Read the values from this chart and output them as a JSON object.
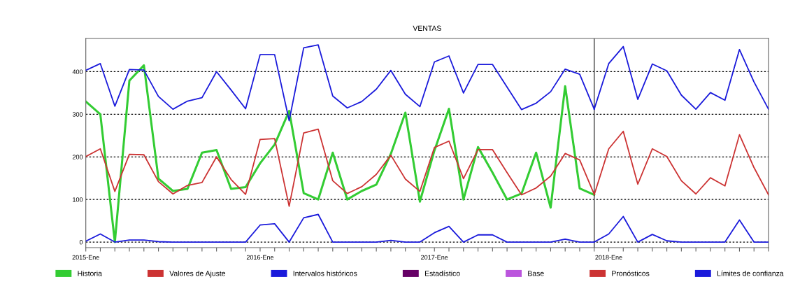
{
  "chart_data": {
    "type": "line",
    "title": "VENTAS",
    "xlim": [
      "2015-01",
      "2018-12"
    ],
    "ylim": [
      -13,
      478
    ],
    "yticks": [
      0,
      100,
      200,
      300,
      400
    ],
    "xticks": [
      {
        "value": "2015-01",
        "label": "2015-Ene"
      },
      {
        "value": "2015-02",
        "label": null
      },
      {
        "value": "2015-03",
        "label": null
      },
      {
        "value": "2015-04",
        "label": null
      },
      {
        "value": "2015-05",
        "label": null
      },
      {
        "value": "2015-06",
        "label": null
      },
      {
        "value": "2015-07",
        "label": null
      },
      {
        "value": "2015-08",
        "label": null
      },
      {
        "value": "2015-09",
        "label": null
      },
      {
        "value": "2015-10",
        "label": null
      },
      {
        "value": "2015-11",
        "label": null
      },
      {
        "value": "2015-12",
        "label": null
      },
      {
        "value": "2016-01",
        "label": "2016-Ene"
      },
      {
        "value": "2016-02",
        "label": null
      },
      {
        "value": "2016-03",
        "label": null
      },
      {
        "value": "2016-04",
        "label": null
      },
      {
        "value": "2016-05",
        "label": null
      },
      {
        "value": "2016-06",
        "label": null
      },
      {
        "value": "2016-07",
        "label": null
      },
      {
        "value": "2016-08",
        "label": null
      },
      {
        "value": "2016-09",
        "label": null
      },
      {
        "value": "2016-10",
        "label": null
      },
      {
        "value": "2016-11",
        "label": null
      },
      {
        "value": "2016-12",
        "label": null
      },
      {
        "value": "2017-01",
        "label": "2017-Ene"
      },
      {
        "value": "2017-02",
        "label": null
      },
      {
        "value": "2017-03",
        "label": null
      },
      {
        "value": "2017-04",
        "label": null
      },
      {
        "value": "2017-05",
        "label": null
      },
      {
        "value": "2017-06",
        "label": null
      },
      {
        "value": "2017-07",
        "label": null
      },
      {
        "value": "2017-08",
        "label": null
      },
      {
        "value": "2017-09",
        "label": null
      },
      {
        "value": "2017-10",
        "label": null
      },
      {
        "value": "2017-11",
        "label": null
      },
      {
        "value": "2017-12",
        "label": null
      },
      {
        "value": "2018-01",
        "label": "2018-Ene"
      },
      {
        "value": "2018-02",
        "label": null
      },
      {
        "value": "2018-03",
        "label": null
      },
      {
        "value": "2018-04",
        "label": null
      },
      {
        "value": "2018-05",
        "label": null
      },
      {
        "value": "2018-06",
        "label": null
      },
      {
        "value": "2018-07",
        "label": null
      },
      {
        "value": "2018-08",
        "label": null
      },
      {
        "value": "2018-09",
        "label": null
      },
      {
        "value": "2018-10",
        "label": null
      },
      {
        "value": "2018-11",
        "label": null
      },
      {
        "value": "2018-12",
        "label": null
      }
    ],
    "x": [
      "2015-01",
      "2015-02",
      "2015-03",
      "2015-04",
      "2015-05",
      "2015-06",
      "2015-07",
      "2015-08",
      "2015-09",
      "2015-10",
      "2015-11",
      "2015-12",
      "2016-01",
      "2016-02",
      "2016-03",
      "2016-04",
      "2016-05",
      "2016-06",
      "2016-07",
      "2016-08",
      "2016-09",
      "2016-10",
      "2016-11",
      "2016-12",
      "2017-01",
      "2017-02",
      "2017-03",
      "2017-04",
      "2017-05",
      "2017-06",
      "2017-07",
      "2017-08",
      "2017-09",
      "2017-10",
      "2017-11",
      "2017-12"
    ],
    "grid": "y",
    "legend": "bottom",
    "marker": "none",
    "line_style": "solid",
    "ref_lines": [
      {
        "axis": "x",
        "value": "2017-12",
        "label": null,
        "color": "#404040"
      }
    ],
    "series": [
      {
        "name": "Historia",
        "color": "#33cc33",
        "values": [
          330,
          300,
          0,
          379,
          415,
          149,
          120,
          125,
          210,
          216,
          125,
          129,
          185,
          229,
          308,
          115,
          100,
          210,
          100,
          120,
          135,
          207,
          304,
          95,
          215,
          313,
          100,
          223,
          163,
          100,
          114,
          210,
          81,
          366,
          126,
          111
        ]
      },
      {
        "name": "Valores de Ajuste",
        "color": "#cc3333",
        "values": [
          201,
          219,
          119,
          206,
          205,
          142,
          113,
          133,
          140,
          200,
          147,
          112,
          241,
          243,
          84,
          256,
          265,
          144,
          114,
          130,
          159,
          204,
          148,
          119,
          222,
          237,
          149,
          217,
          217,
          163,
          111,
          127,
          155,
          208,
          193,
          112
        ]
      },
      {
        "name": "Intervalos históricos",
        "color": "#1a1adb",
        "values": [
          403,
          419,
          319,
          405,
          404,
          342,
          312,
          331,
          339,
          400,
          357,
          313,
          440,
          440,
          285,
          456,
          463,
          343,
          315,
          330,
          359,
          403,
          347,
          318,
          423,
          437,
          350,
          417,
          417,
          364,
          311,
          326,
          353,
          406,
          394,
          312
        ]
      },
      {
        "color": "#1a1adb",
        "values": [
          2,
          19,
          0,
          5,
          5,
          1,
          0,
          0,
          0,
          0,
          0,
          0,
          40,
          43,
          0,
          57,
          65,
          0,
          0,
          0,
          0,
          4,
          0,
          0,
          22,
          37,
          0,
          17,
          17,
          0,
          0,
          0,
          0,
          7,
          0,
          0
        ]
      },
      {
        "name": "Estadístico",
        "color": "#660066",
        "values": [
          null,
          null,
          null,
          null,
          null,
          null,
          null,
          null,
          null,
          null,
          null,
          null,
          null,
          null,
          null,
          null,
          null,
          null,
          null,
          null,
          null,
          null,
          null,
          null,
          null,
          null,
          null,
          null,
          null,
          null,
          null,
          null,
          null,
          null,
          null,
          null
        ]
      },
      {
        "name": "Base",
        "color": "#bb55dd",
        "values": [
          null,
          null,
          null,
          null,
          null,
          null,
          null,
          null,
          null,
          null,
          null,
          null,
          null,
          null,
          null,
          null,
          null,
          null,
          null,
          null,
          null,
          null,
          null,
          null,
          null,
          null,
          null,
          null,
          null,
          null,
          null,
          null,
          null,
          null,
          null,
          null
        ]
      },
      {
        "name": "Pronósticos",
        "color": "#cc3333",
        "x": [
          "2017-12",
          "2018-01",
          "2018-02",
          "2018-03",
          "2018-04",
          "2018-05",
          "2018-06",
          "2018-07",
          "2018-08",
          "2018-09",
          "2018-10",
          "2018-11",
          "2018-12"
        ],
        "values": [
          111,
          219,
          260,
          136,
          219,
          201,
          144,
          113,
          151,
          132,
          252,
          175,
          111
        ]
      },
      {
        "name": "Límites de confianza",
        "color": "#1a1adb",
        "x": [
          "2017-12",
          "2018-01",
          "2018-02",
          "2018-03",
          "2018-04",
          "2018-05",
          "2018-06",
          "2018-07",
          "2018-08",
          "2018-09",
          "2018-10",
          "2018-11",
          "2018-12"
        ],
        "values": [
          312,
          419,
          459,
          335,
          418,
          402,
          345,
          312,
          351,
          333,
          452,
          376,
          312
        ]
      },
      {
        "color": "#1a1adb",
        "x": [
          "2017-12",
          "2018-01",
          "2018-02",
          "2018-03",
          "2018-04",
          "2018-05",
          "2018-06",
          "2018-07",
          "2018-08",
          "2018-09",
          "2018-10",
          "2018-11",
          "2018-12"
        ],
        "values": [
          0,
          19,
          60,
          0,
          18,
          3,
          0,
          0,
          0,
          0,
          52,
          0,
          0
        ]
      }
    ]
  }
}
